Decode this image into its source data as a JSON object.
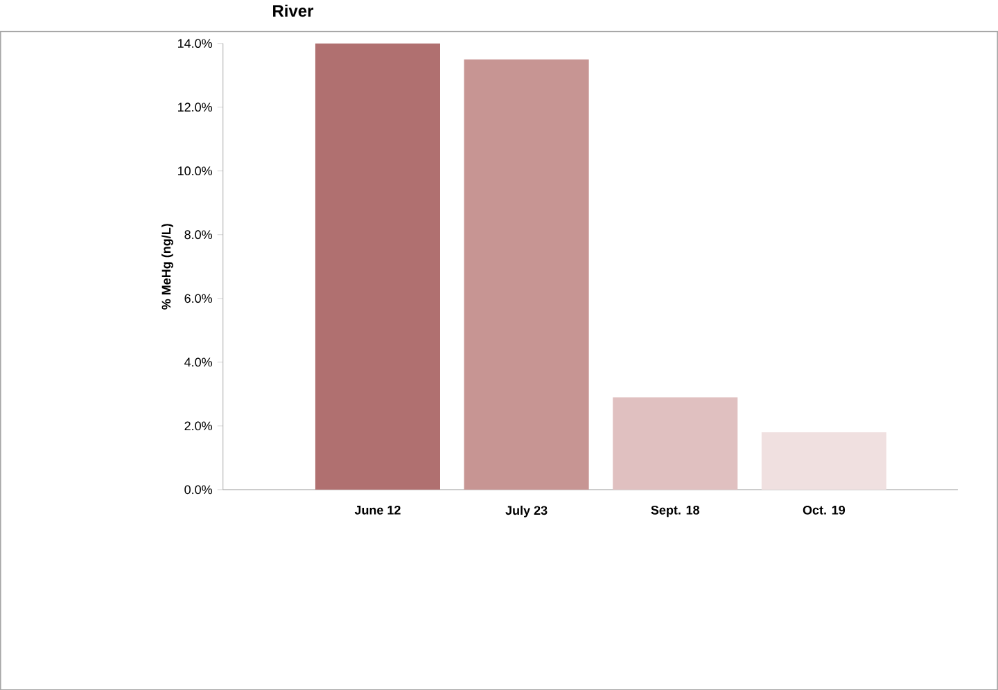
{
  "chart_data": {
    "type": "bar",
    "title": "River",
    "ylabel": "% MeHg (ng/L)",
    "categories": [
      "June 12",
      "July 23",
      "Sept. 18",
      "Oct. 19"
    ],
    "values": [
      14.0,
      13.5,
      2.9,
      1.8
    ],
    "colors": [
      "#b07070",
      "#c79593",
      "#e0c0c0",
      "#f0e0e0"
    ],
    "ylim": [
      0,
      14
    ],
    "yticks": [
      {
        "value": 0,
        "label": "0.0%"
      },
      {
        "value": 2,
        "label": "2.0%"
      },
      {
        "value": 4,
        "label": "4.0%"
      },
      {
        "value": 6,
        "label": "6.0%"
      },
      {
        "value": 8,
        "label": "8.0%"
      },
      {
        "value": 10,
        "label": "10.0%"
      },
      {
        "value": 12,
        "label": "12.0%"
      },
      {
        "value": 14,
        "label": "14.0%"
      }
    ],
    "grid": false
  }
}
